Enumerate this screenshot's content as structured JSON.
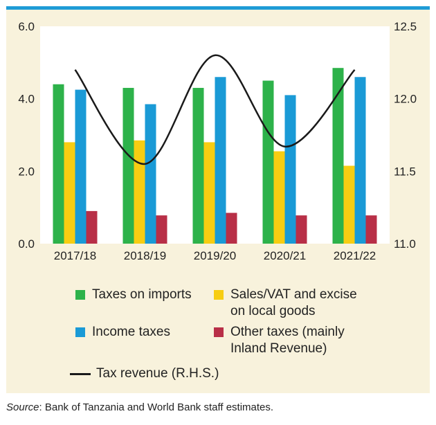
{
  "chart_data": {
    "type": "bar",
    "categories": [
      "2017/18",
      "2018/19",
      "2019/20",
      "2020/21",
      "2021/22"
    ],
    "series": [
      {
        "name": "Taxes on imports",
        "color": "#2db24a",
        "values": [
          4.4,
          4.3,
          4.3,
          4.5,
          4.85
        ]
      },
      {
        "name": "Sales/VAT and excise\non local goods",
        "color": "#f7cd12",
        "values": [
          2.8,
          2.85,
          2.8,
          2.55,
          2.15
        ]
      },
      {
        "name": "Income taxes",
        "color": "#1a9ad6",
        "values": [
          4.25,
          3.85,
          4.6,
          4.1,
          4.6
        ]
      },
      {
        "name": "Other taxes (mainly\nInland Revenue)",
        "color": "#b82f47",
        "values": [
          0.9,
          0.78,
          0.85,
          0.78,
          0.78
        ]
      }
    ],
    "line_series": {
      "name": "Tax revenue (R.H.S.)",
      "color": "#1a1a1a",
      "values": [
        12.2,
        11.55,
        12.3,
        11.67,
        12.2
      ],
      "axis": "right"
    },
    "ylim": [
      0,
      6
    ],
    "yticks": [
      "0.0",
      "2.0",
      "4.0",
      "6.0"
    ],
    "y2lim": [
      11,
      12.5
    ],
    "y2ticks": [
      "11.0",
      "11.5",
      "12.0",
      "12.5"
    ],
    "grid": false,
    "legend_position": "bottom"
  },
  "source": {
    "label": "Source",
    "text": ": Bank of Tanzania and World Bank staff estimates."
  }
}
